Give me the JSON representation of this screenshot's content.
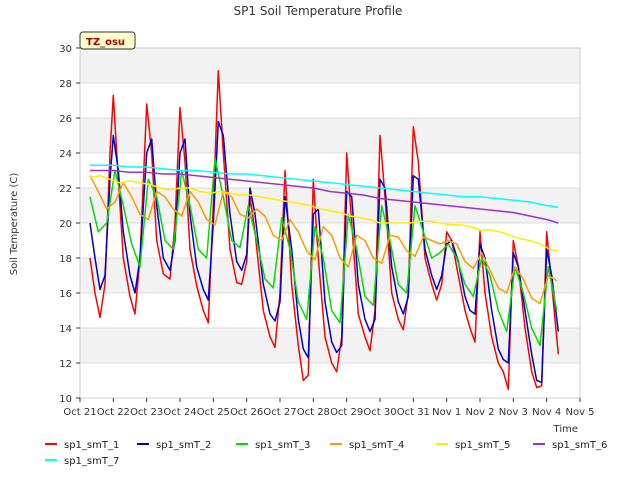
{
  "chart_data": {
    "type": "line",
    "title": "SP1 Soil Temperature Profile",
    "xlabel": "Time",
    "ylabel": "Soil Temperature (C)",
    "badge": "TZ_osu",
    "ylim": [
      10,
      30
    ],
    "yticks": [
      10,
      12,
      14,
      16,
      18,
      20,
      22,
      24,
      26,
      28,
      30
    ],
    "xlim": [
      0,
      15
    ],
    "xticks": [
      {
        "pos": 0,
        "label": "Oct 21"
      },
      {
        "pos": 1,
        "label": "Oct 22"
      },
      {
        "pos": 2,
        "label": "Oct 23"
      },
      {
        "pos": 3,
        "label": "Oct 24"
      },
      {
        "pos": 4,
        "label": "Oct 25"
      },
      {
        "pos": 5,
        "label": "Oct 26"
      },
      {
        "pos": 6,
        "label": "Oct 27"
      },
      {
        "pos": 7,
        "label": "Oct 28"
      },
      {
        "pos": 8,
        "label": "Oct 29"
      },
      {
        "pos": 9,
        "label": "Oct 30"
      },
      {
        "pos": 10,
        "label": "Oct 31"
      },
      {
        "pos": 11,
        "label": "Nov 1"
      },
      {
        "pos": 12,
        "label": "Nov 2"
      },
      {
        "pos": 13,
        "label": "Nov 3"
      },
      {
        "pos": 14,
        "label": "Nov 4"
      },
      {
        "pos": 15,
        "label": "Nov 5"
      }
    ],
    "x_unit": "days since Oct 21",
    "series": [
      {
        "name": "sp1_smT_1",
        "color": "#ff0000",
        "x": [
          0.3,
          0.45,
          0.6,
          0.75,
          0.9,
          1.0,
          1.15,
          1.3,
          1.5,
          1.65,
          1.8,
          2.0,
          2.15,
          2.3,
          2.5,
          2.7,
          2.85,
          3.0,
          3.15,
          3.3,
          3.5,
          3.7,
          3.85,
          4.0,
          4.15,
          4.3,
          4.5,
          4.7,
          4.85,
          5.0,
          5.1,
          5.25,
          5.5,
          5.7,
          5.85,
          6.0,
          6.15,
          6.35,
          6.55,
          6.7,
          6.85,
          7.0,
          7.15,
          7.35,
          7.55,
          7.7,
          7.85,
          8.0,
          8.15,
          8.35,
          8.55,
          8.7,
          8.85,
          9.0,
          9.15,
          9.35,
          9.55,
          9.7,
          9.85,
          10.0,
          10.15,
          10.35,
          10.55,
          10.7,
          10.85,
          11.0,
          11.15,
          11.35,
          11.55,
          11.7,
          11.85,
          12.0,
          12.15,
          12.35,
          12.55,
          12.7,
          12.85,
          13.0,
          13.15,
          13.35,
          13.55,
          13.7,
          13.85,
          14.0,
          14.15,
          14.35
        ],
        "y": [
          18.0,
          16.0,
          14.6,
          16.5,
          24.0,
          27.3,
          22.5,
          18.0,
          15.8,
          14.8,
          18.0,
          26.8,
          24.0,
          19.0,
          17.1,
          16.8,
          20.0,
          26.6,
          23.5,
          18.5,
          16.4,
          15.0,
          14.3,
          21.0,
          28.7,
          24.0,
          18.5,
          16.6,
          16.5,
          17.8,
          21.5,
          19.5,
          15.0,
          13.5,
          12.9,
          16.0,
          23.0,
          16.5,
          13.0,
          11.0,
          11.3,
          22.5,
          18.0,
          13.5,
          12.0,
          11.5,
          13.5,
          24.0,
          20.0,
          14.8,
          13.5,
          12.7,
          15.0,
          25.0,
          21.5,
          16.0,
          14.5,
          13.9,
          16.0,
          25.5,
          23.5,
          18.0,
          16.5,
          15.6,
          16.5,
          19.5,
          19.0,
          17.0,
          15.0,
          14.0,
          13.2,
          19.5,
          16.0,
          13.5,
          12.0,
          11.5,
          10.5,
          19.0,
          17.5,
          14.0,
          11.5,
          10.6,
          10.7,
          19.5,
          16.5,
          12.5
        ]
      },
      {
        "name": "sp1_smT_2",
        "color": "#0000cc",
        "x": [
          0.3,
          0.45,
          0.6,
          0.75,
          0.9,
          1.0,
          1.15,
          1.3,
          1.5,
          1.65,
          1.8,
          2.0,
          2.15,
          2.3,
          2.5,
          2.7,
          2.85,
          3.0,
          3.15,
          3.3,
          3.5,
          3.7,
          3.85,
          4.0,
          4.15,
          4.3,
          4.5,
          4.7,
          4.85,
          5.0,
          5.1,
          5.25,
          5.5,
          5.7,
          5.85,
          6.0,
          6.15,
          6.35,
          6.55,
          6.7,
          6.85,
          7.0,
          7.15,
          7.35,
          7.55,
          7.7,
          7.85,
          8.0,
          8.15,
          8.35,
          8.55,
          8.7,
          8.85,
          9.0,
          9.15,
          9.35,
          9.55,
          9.7,
          9.85,
          10.0,
          10.15,
          10.35,
          10.55,
          10.7,
          10.85,
          11.0,
          11.15,
          11.35,
          11.55,
          11.7,
          11.85,
          12.0,
          12.15,
          12.35,
          12.55,
          12.7,
          12.85,
          13.0,
          13.15,
          13.35,
          13.55,
          13.7,
          13.85,
          14.0,
          14.15,
          14.35
        ],
        "y": [
          20.0,
          18.0,
          16.2,
          17.0,
          22.5,
          25.0,
          23.0,
          19.5,
          17.0,
          16.0,
          18.0,
          24.0,
          24.8,
          21.0,
          18.0,
          17.3,
          19.0,
          24.0,
          24.8,
          20.5,
          17.5,
          16.2,
          15.6,
          20.0,
          25.8,
          25.0,
          20.5,
          17.8,
          17.3,
          18.2,
          22.0,
          20.5,
          16.5,
          14.8,
          14.4,
          15.5,
          21.5,
          18.5,
          14.5,
          12.8,
          12.3,
          20.5,
          20.8,
          15.5,
          13.2,
          12.6,
          13.0,
          21.8,
          21.5,
          16.5,
          14.5,
          13.8,
          14.5,
          22.5,
          22.0,
          17.5,
          15.5,
          14.8,
          15.8,
          22.7,
          22.5,
          18.5,
          17.0,
          16.2,
          17.0,
          18.8,
          19.0,
          17.8,
          15.8,
          15.0,
          14.8,
          18.8,
          18.0,
          15.0,
          12.8,
          12.2,
          12.0,
          18.3,
          17.5,
          15.0,
          12.5,
          11.0,
          10.9,
          18.5,
          17.0,
          13.8
        ]
      },
      {
        "name": "sp1_smT_3",
        "color": "#00dd00",
        "x": [
          0.3,
          0.55,
          0.8,
          1.05,
          1.3,
          1.55,
          1.8,
          2.05,
          2.3,
          2.55,
          2.8,
          3.05,
          3.3,
          3.55,
          3.8,
          4.05,
          4.3,
          4.55,
          4.8,
          5.05,
          5.3,
          5.55,
          5.8,
          6.05,
          6.3,
          6.55,
          6.8,
          7.05,
          7.3,
          7.55,
          7.8,
          8.05,
          8.3,
          8.55,
          8.8,
          9.05,
          9.3,
          9.55,
          9.8,
          10.05,
          10.3,
          10.55,
          10.8,
          11.05,
          11.3,
          11.55,
          11.8,
          12.05,
          12.3,
          12.55,
          12.8,
          13.05,
          13.3,
          13.55,
          13.8,
          14.05,
          14.3
        ],
        "y": [
          21.5,
          19.5,
          20.0,
          23.0,
          21.0,
          18.8,
          17.5,
          22.5,
          21.5,
          19.0,
          18.5,
          23.0,
          21.0,
          18.5,
          18.0,
          23.7,
          21.5,
          19.0,
          18.6,
          21.0,
          19.0,
          16.8,
          16.3,
          20.3,
          18.5,
          15.5,
          14.5,
          19.8,
          18.0,
          15.0,
          14.3,
          20.5,
          18.5,
          15.8,
          15.3,
          21.0,
          19.0,
          16.5,
          16.0,
          21.0,
          19.5,
          18.0,
          18.3,
          18.8,
          18.0,
          16.5,
          15.8,
          18.0,
          17.0,
          15.0,
          13.8,
          17.5,
          16.0,
          14.0,
          13.0,
          17.5,
          15.0
        ]
      },
      {
        "name": "sp1_smT_4",
        "color": "#ff9900",
        "x": [
          0.3,
          0.55,
          0.8,
          1.05,
          1.3,
          1.55,
          1.8,
          2.05,
          2.3,
          2.55,
          2.8,
          3.05,
          3.3,
          3.55,
          3.8,
          4.05,
          4.3,
          4.55,
          4.8,
          5.05,
          5.3,
          5.55,
          5.8,
          6.05,
          6.3,
          6.55,
          6.8,
          7.05,
          7.3,
          7.55,
          7.8,
          8.05,
          8.3,
          8.55,
          8.8,
          9.05,
          9.3,
          9.55,
          9.8,
          10.05,
          10.3,
          10.55,
          10.8,
          11.05,
          11.3,
          11.55,
          11.8,
          12.05,
          12.3,
          12.55,
          12.8,
          13.05,
          13.3,
          13.55,
          13.8,
          14.05,
          14.3
        ],
        "y": [
          22.7,
          21.8,
          20.8,
          21.2,
          22.3,
          21.5,
          20.5,
          20.2,
          21.8,
          21.5,
          20.8,
          20.4,
          21.8,
          21.2,
          20.2,
          19.9,
          21.8,
          21.5,
          20.5,
          20.3,
          20.8,
          20.4,
          19.3,
          19.0,
          20.2,
          19.5,
          18.4,
          17.9,
          19.8,
          19.3,
          18.0,
          17.5,
          19.3,
          19.0,
          18.0,
          17.7,
          19.3,
          19.2,
          18.4,
          18.1,
          19.2,
          19.0,
          18.8,
          19.0,
          18.8,
          17.8,
          17.4,
          18.3,
          17.3,
          16.3,
          16.0,
          17.5,
          16.8,
          15.7,
          15.4,
          17.0,
          16.7
        ]
      },
      {
        "name": "sp1_smT_5",
        "color": "#ffee00",
        "x": [
          0.3,
          0.6,
          0.9,
          1.2,
          1.5,
          1.8,
          2.1,
          2.4,
          2.7,
          3.0,
          3.3,
          3.6,
          3.9,
          4.2,
          4.5,
          4.8,
          5.1,
          5.4,
          5.7,
          6.0,
          6.3,
          6.6,
          6.9,
          7.2,
          7.5,
          7.8,
          8.1,
          8.4,
          8.7,
          9.0,
          9.3,
          9.6,
          9.9,
          10.2,
          10.5,
          10.8,
          11.1,
          11.4,
          11.7,
          12.0,
          12.3,
          12.6,
          12.9,
          13.2,
          13.5,
          13.8,
          14.1,
          14.35
        ],
        "y": [
          22.6,
          22.7,
          22.5,
          22.3,
          22.4,
          22.3,
          22.2,
          22.0,
          21.9,
          22.0,
          22.0,
          21.8,
          21.7,
          21.8,
          21.7,
          21.6,
          21.6,
          21.5,
          21.4,
          21.3,
          21.2,
          21.1,
          21.0,
          20.8,
          20.7,
          20.6,
          20.4,
          20.3,
          20.2,
          20.0,
          20.0,
          20.0,
          20.0,
          20.1,
          20.1,
          20.0,
          19.9,
          19.9,
          19.8,
          19.6,
          19.6,
          19.5,
          19.3,
          19.1,
          19.0,
          18.8,
          18.5,
          18.4
        ]
      },
      {
        "name": "sp1_smT_6",
        "color": "#9933cc",
        "x": [
          0.3,
          1.0,
          1.5,
          2.0,
          2.5,
          3.0,
          3.5,
          4.0,
          4.5,
          5.0,
          5.5,
          6.0,
          6.5,
          7.0,
          7.5,
          8.0,
          8.5,
          9.0,
          9.5,
          10.0,
          10.5,
          11.0,
          11.5,
          12.0,
          12.5,
          13.0,
          13.5,
          14.0,
          14.35
        ],
        "y": [
          23.0,
          23.0,
          22.9,
          22.9,
          22.8,
          22.8,
          22.7,
          22.6,
          22.5,
          22.4,
          22.3,
          22.2,
          22.1,
          22.0,
          21.8,
          21.7,
          21.6,
          21.4,
          21.3,
          21.2,
          21.1,
          21.0,
          20.9,
          20.8,
          20.7,
          20.6,
          20.4,
          20.2,
          20.0
        ]
      },
      {
        "name": "sp1_smT_7",
        "color": "#00ffff",
        "x": [
          0.3,
          1.0,
          1.5,
          2.0,
          2.5,
          3.0,
          3.5,
          4.0,
          4.5,
          5.0,
          5.5,
          6.0,
          6.5,
          7.0,
          7.5,
          8.0,
          8.5,
          9.0,
          9.5,
          10.0,
          10.5,
          11.0,
          11.5,
          12.0,
          12.5,
          13.0,
          13.5,
          14.0,
          14.35
        ],
        "y": [
          23.3,
          23.3,
          23.2,
          23.2,
          23.1,
          23.0,
          23.0,
          22.9,
          22.8,
          22.8,
          22.7,
          22.6,
          22.5,
          22.4,
          22.3,
          22.2,
          22.1,
          22.0,
          21.9,
          21.8,
          21.7,
          21.6,
          21.5,
          21.5,
          21.4,
          21.3,
          21.2,
          21.0,
          20.9
        ]
      }
    ]
  }
}
